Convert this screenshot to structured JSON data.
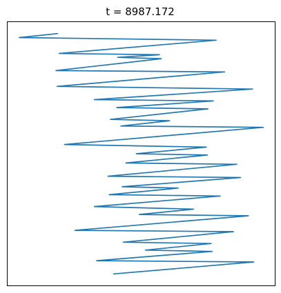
{
  "chart_data": {
    "type": "line",
    "title": "t = 8987.172",
    "xlabel": "",
    "ylabel": "",
    "xlim": [
      0,
      1
    ],
    "ylim": [
      0,
      1
    ],
    "axes_visible": false,
    "grid": false,
    "series": [
      {
        "color": "#1f77b4",
        "x": [
          0.188,
          0.045,
          0.78,
          0.194,
          0.568,
          0.412,
          0.575,
          0.182,
          0.811,
          0.186,
          0.916,
          0.325,
          0.769,
          0.409,
          0.749,
          0.385,
          0.606,
          0.424,
          0.956,
          0.214,
          0.743,
          0.482,
          0.747,
          0.443,
          0.857,
          0.376,
          0.871,
          0.429,
          0.638,
          0.381,
          0.795,
          0.325,
          0.695,
          0.493,
          0.9,
          0.253,
          0.844,
          0.433,
          0.761,
          0.516,
          0.765,
          0.334,
          0.92,
          0.397
        ],
        "y": [
          0.955,
          0.94,
          0.93,
          0.88,
          0.875,
          0.865,
          0.86,
          0.815,
          0.81,
          0.755,
          0.745,
          0.705,
          0.7,
          0.675,
          0.67,
          0.63,
          0.625,
          0.605,
          0.6,
          0.535,
          0.525,
          0.5,
          0.495,
          0.465,
          0.46,
          0.415,
          0.41,
          0.375,
          0.37,
          0.345,
          0.34,
          0.3,
          0.29,
          0.27,
          0.265,
          0.21,
          0.205,
          0.165,
          0.16,
          0.135,
          0.13,
          0.095,
          0.09,
          0.045
        ]
      }
    ]
  }
}
